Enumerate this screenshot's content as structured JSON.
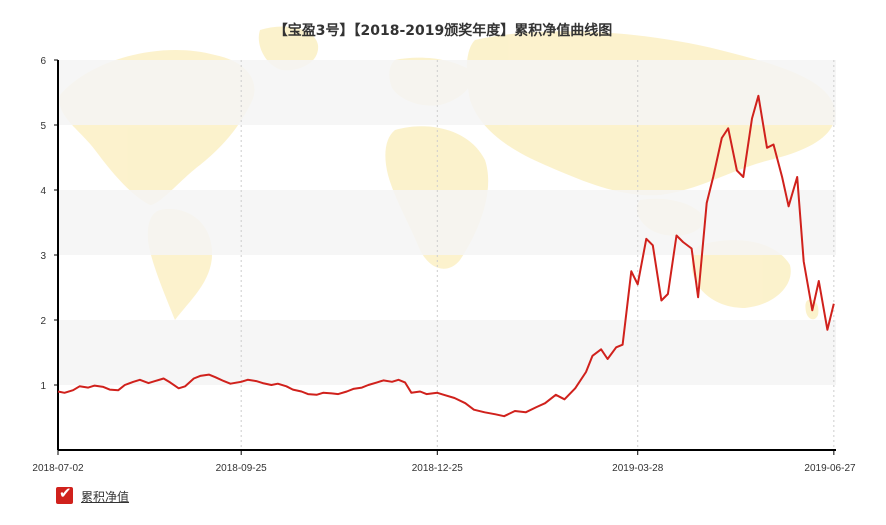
{
  "chart_data": {
    "type": "line",
    "title": "【宝盈3号】【2018-2019颁奖年度】累积净值曲线图",
    "xlabel": "",
    "ylabel": "",
    "x_ticks": [
      "2018-07-02",
      "2018-09-25",
      "2018-12-25",
      "2019-03-28",
      "2019-06-27"
    ],
    "y_ticks": [
      "1",
      "2",
      "3",
      "4",
      "5",
      "6"
    ],
    "ylim": [
      0,
      6
    ],
    "xlim": [
      "2018-07-02",
      "2019-06-28"
    ],
    "grid": "vertical dotted at x ticks, alternating horizontal bands",
    "legend_position": "bottom-left",
    "colors": {
      "line": "#d0211c",
      "band": "#f5f5f5",
      "map": "#fbf0c4"
    },
    "series": [
      {
        "name": "累积净值",
        "points": [
          [
            "2018-07-02",
            0.9
          ],
          [
            "2018-07-05",
            0.88
          ],
          [
            "2018-07-09",
            0.92
          ],
          [
            "2018-07-12",
            0.98
          ],
          [
            "2018-07-16",
            0.96
          ],
          [
            "2018-07-19",
            0.99
          ],
          [
            "2018-07-23",
            0.97
          ],
          [
            "2018-07-26",
            0.93
          ],
          [
            "2018-07-30",
            0.92
          ],
          [
            "2018-08-02",
            1.0
          ],
          [
            "2018-08-06",
            1.05
          ],
          [
            "2018-08-09",
            1.08
          ],
          [
            "2018-08-13",
            1.03
          ],
          [
            "2018-08-16",
            1.06
          ],
          [
            "2018-08-20",
            1.1
          ],
          [
            "2018-08-23",
            1.04
          ],
          [
            "2018-08-27",
            0.95
          ],
          [
            "2018-08-30",
            0.98
          ],
          [
            "2018-09-03",
            1.1
          ],
          [
            "2018-09-06",
            1.14
          ],
          [
            "2018-09-10",
            1.16
          ],
          [
            "2018-09-13",
            1.12
          ],
          [
            "2018-09-17",
            1.06
          ],
          [
            "2018-09-20",
            1.02
          ],
          [
            "2018-09-25",
            1.05
          ],
          [
            "2018-09-28",
            1.08
          ],
          [
            "2018-10-02",
            1.06
          ],
          [
            "2018-10-05",
            1.03
          ],
          [
            "2018-10-09",
            1.0
          ],
          [
            "2018-10-12",
            1.02
          ],
          [
            "2018-10-16",
            0.98
          ],
          [
            "2018-10-19",
            0.93
          ],
          [
            "2018-10-23",
            0.9
          ],
          [
            "2018-10-26",
            0.86
          ],
          [
            "2018-10-30",
            0.85
          ],
          [
            "2018-11-02",
            0.88
          ],
          [
            "2018-11-06",
            0.87
          ],
          [
            "2018-11-09",
            0.86
          ],
          [
            "2018-11-13",
            0.9
          ],
          [
            "2018-11-16",
            0.94
          ],
          [
            "2018-11-20",
            0.96
          ],
          [
            "2018-11-23",
            1.0
          ],
          [
            "2018-11-27",
            1.04
          ],
          [
            "2018-11-30",
            1.07
          ],
          [
            "2018-12-04",
            1.05
          ],
          [
            "2018-12-07",
            1.08
          ],
          [
            "2018-12-10",
            1.04
          ],
          [
            "2018-12-13",
            0.88
          ],
          [
            "2018-12-17",
            0.9
          ],
          [
            "2018-12-20",
            0.86
          ],
          [
            "2018-12-25",
            0.88
          ],
          [
            "2018-12-28",
            0.85
          ],
          [
            "2019-01-02",
            0.8
          ],
          [
            "2019-01-07",
            0.72
          ],
          [
            "2019-01-11",
            0.62
          ],
          [
            "2019-01-16",
            0.58
          ],
          [
            "2019-01-21",
            0.55
          ],
          [
            "2019-01-25",
            0.52
          ],
          [
            "2019-01-30",
            0.6
          ],
          [
            "2019-02-04",
            0.58
          ],
          [
            "2019-02-09",
            0.66
          ],
          [
            "2019-02-13",
            0.72
          ],
          [
            "2019-02-18",
            0.85
          ],
          [
            "2019-02-22",
            0.78
          ],
          [
            "2019-02-27",
            0.95
          ],
          [
            "2019-03-04",
            1.2
          ],
          [
            "2019-03-07",
            1.45
          ],
          [
            "2019-03-11",
            1.55
          ],
          [
            "2019-03-14",
            1.4
          ],
          [
            "2019-03-18",
            1.58
          ],
          [
            "2019-03-21",
            1.62
          ],
          [
            "2019-03-25",
            2.75
          ],
          [
            "2019-03-28",
            2.55
          ],
          [
            "2019-04-01",
            3.25
          ],
          [
            "2019-04-04",
            3.15
          ],
          [
            "2019-04-08",
            2.3
          ],
          [
            "2019-04-11",
            2.4
          ],
          [
            "2019-04-15",
            3.3
          ],
          [
            "2019-04-18",
            3.2
          ],
          [
            "2019-04-22",
            3.1
          ],
          [
            "2019-04-25",
            2.35
          ],
          [
            "2019-04-29",
            3.8
          ],
          [
            "2019-05-02",
            4.2
          ],
          [
            "2019-05-06",
            4.8
          ],
          [
            "2019-05-09",
            4.95
          ],
          [
            "2019-05-13",
            4.3
          ],
          [
            "2019-05-16",
            4.2
          ],
          [
            "2019-05-20",
            5.1
          ],
          [
            "2019-05-23",
            5.45
          ],
          [
            "2019-05-27",
            4.65
          ],
          [
            "2019-05-30",
            4.7
          ],
          [
            "2019-06-03",
            4.2
          ],
          [
            "2019-06-06",
            3.75
          ],
          [
            "2019-06-10",
            4.2
          ],
          [
            "2019-06-13",
            2.9
          ],
          [
            "2019-06-17",
            2.15
          ],
          [
            "2019-06-20",
            2.6
          ],
          [
            "2019-06-24",
            1.85
          ],
          [
            "2019-06-27",
            2.25
          ]
        ]
      }
    ]
  }
}
